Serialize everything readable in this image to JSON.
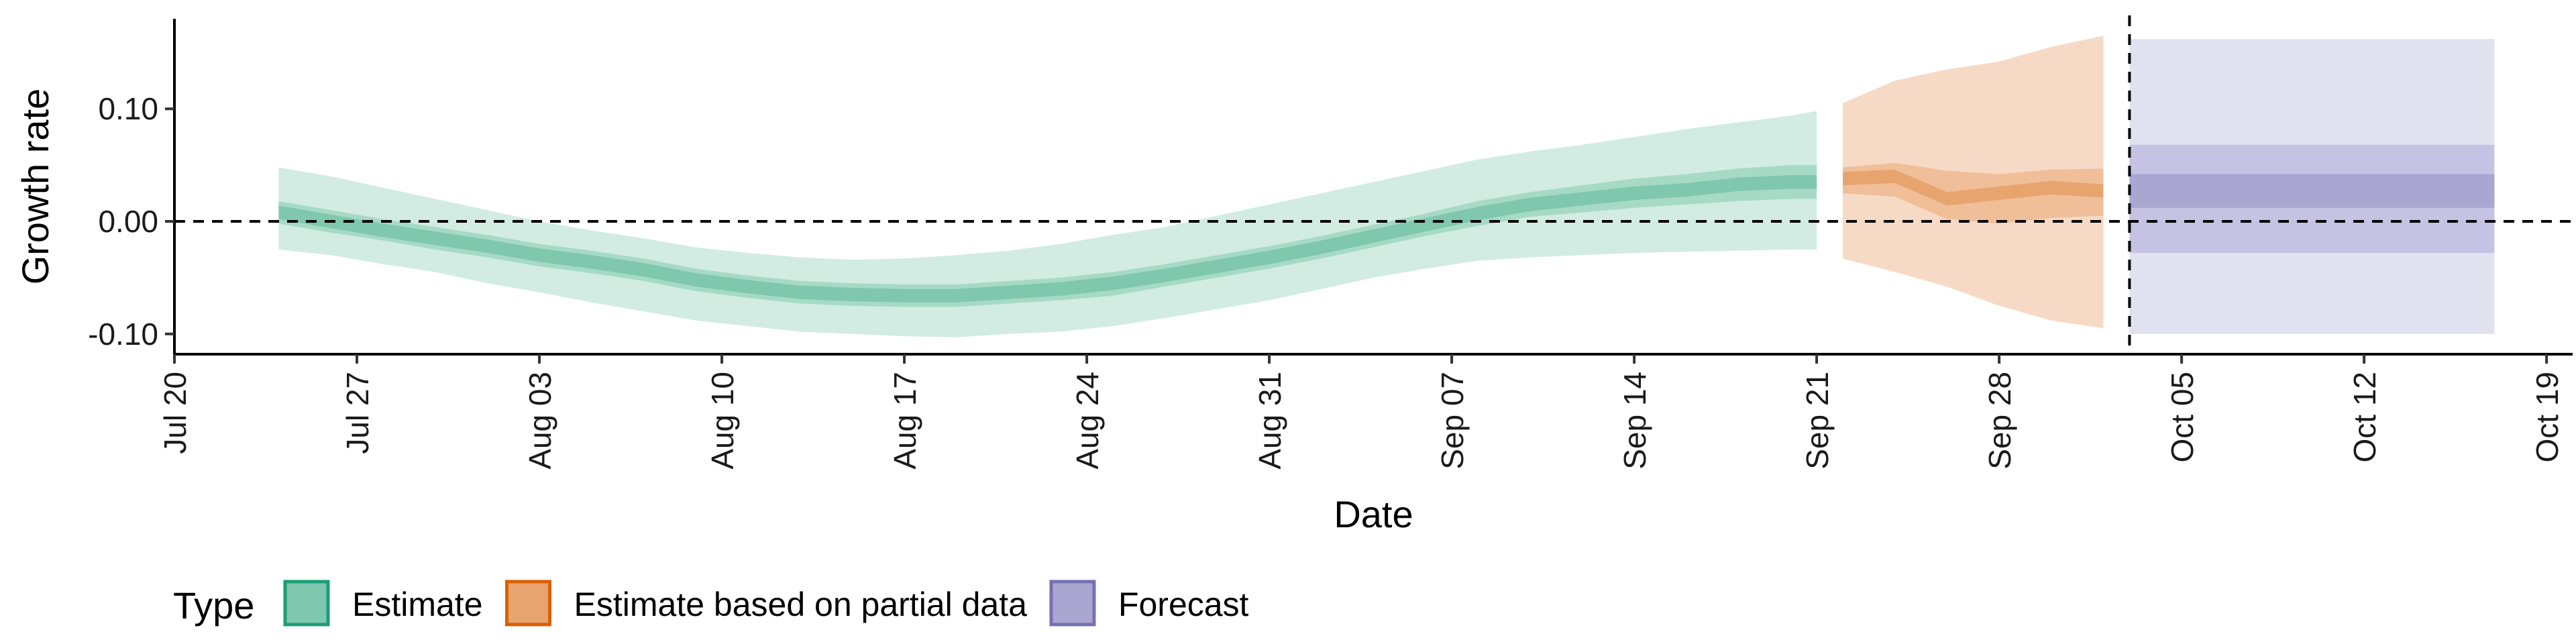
{
  "chart_data": {
    "type": "area",
    "xlabel": "Date",
    "ylabel": "Growth rate",
    "x_axis": {
      "type": "date",
      "range": [
        "2020-07-20",
        "2020-10-20"
      ],
      "ticks": [
        "2020-07-20",
        "2020-07-27",
        "2020-08-03",
        "2020-08-10",
        "2020-08-17",
        "2020-08-24",
        "2020-08-31",
        "2020-09-07",
        "2020-09-14",
        "2020-09-21",
        "2020-09-28",
        "2020-10-05",
        "2020-10-12",
        "2020-10-19"
      ],
      "tick_labels": [
        "Jul 20",
        "Jul 27",
        "Aug 03",
        "Aug 10",
        "Aug 17",
        "Aug 24",
        "Aug 31",
        "Sep 07",
        "Sep 14",
        "Sep 21",
        "Sep 28",
        "Oct 05",
        "Oct 12",
        "Oct 19"
      ]
    },
    "y_axis": {
      "range": [
        -0.118,
        0.18
      ],
      "ticks": [
        0.1,
        0.0,
        -0.1
      ],
      "tick_labels": [
        "0.10",
        "0.00",
        "-0.10"
      ]
    },
    "reference_lines": [
      {
        "orientation": "horizontal",
        "y": 0.0,
        "style": "dashed"
      },
      {
        "orientation": "vertical",
        "x": "2020-10-03",
        "style": "dashed"
      }
    ],
    "grid": false,
    "legend": {
      "title": "Type",
      "position": "bottom-left",
      "items": [
        {
          "label": "Estimate",
          "fill": "#7fc7af",
          "stroke": "#1b9e77"
        },
        {
          "label": "Estimate based on partial data",
          "fill": "#e8a46f",
          "stroke": "#d95f02"
        },
        {
          "label": "Forecast",
          "fill": "#aaa6d2",
          "stroke": "#7570b3"
        }
      ]
    },
    "series": [
      {
        "name": "Estimate",
        "color": "#1b9e77",
        "x": [
          "2020-07-24",
          "2020-07-26",
          "2020-07-28",
          "2020-07-30",
          "2020-08-01",
          "2020-08-03",
          "2020-08-05",
          "2020-08-07",
          "2020-08-09",
          "2020-08-11",
          "2020-08-13",
          "2020-08-15",
          "2020-08-17",
          "2020-08-19",
          "2020-08-21",
          "2020-08-23",
          "2020-08-25",
          "2020-08-27",
          "2020-08-29",
          "2020-08-31",
          "2020-09-02",
          "2020-09-04",
          "2020-09-06",
          "2020-09-08",
          "2020-09-10",
          "2020-09-12",
          "2020-09-14",
          "2020-09-16",
          "2020-09-18",
          "2020-09-20",
          "2020-09-21"
        ],
        "median": [
          0.008,
          0.0,
          -0.008,
          -0.015,
          -0.022,
          -0.03,
          -0.036,
          -0.043,
          -0.052,
          -0.058,
          -0.063,
          -0.065,
          -0.066,
          -0.066,
          -0.063,
          -0.06,
          -0.055,
          -0.048,
          -0.04,
          -0.032,
          -0.023,
          -0.013,
          -0.003,
          0.007,
          0.015,
          0.02,
          0.025,
          0.028,
          0.033,
          0.035,
          0.035
        ],
        "ci50_lower": [
          -0.002,
          -0.01,
          -0.017,
          -0.025,
          -0.032,
          -0.04,
          -0.046,
          -0.053,
          -0.062,
          -0.068,
          -0.073,
          -0.075,
          -0.076,
          -0.076,
          -0.073,
          -0.07,
          -0.066,
          -0.058,
          -0.05,
          -0.042,
          -0.033,
          -0.023,
          -0.013,
          -0.004,
          0.004,
          0.008,
          0.012,
          0.015,
          0.018,
          0.02,
          0.02
        ],
        "ci50_upper": [
          0.018,
          0.01,
          0.002,
          -0.005,
          -0.012,
          -0.02,
          -0.026,
          -0.033,
          -0.042,
          -0.048,
          -0.053,
          -0.055,
          -0.056,
          -0.056,
          -0.053,
          -0.05,
          -0.045,
          -0.038,
          -0.03,
          -0.022,
          -0.013,
          -0.003,
          0.007,
          0.018,
          0.026,
          0.032,
          0.038,
          0.042,
          0.047,
          0.05,
          0.05
        ],
        "ci90_lower": [
          -0.025,
          -0.03,
          -0.038,
          -0.045,
          -0.055,
          -0.063,
          -0.072,
          -0.08,
          -0.088,
          -0.093,
          -0.098,
          -0.1,
          -0.102,
          -0.103,
          -0.1,
          -0.098,
          -0.093,
          -0.086,
          -0.078,
          -0.07,
          -0.06,
          -0.05,
          -0.042,
          -0.035,
          -0.032,
          -0.03,
          -0.028,
          -0.027,
          -0.026,
          -0.025,
          -0.025
        ],
        "ci90_upper": [
          0.048,
          0.04,
          0.03,
          0.02,
          0.01,
          0.0,
          -0.008,
          -0.015,
          -0.023,
          -0.028,
          -0.032,
          -0.034,
          -0.033,
          -0.03,
          -0.026,
          -0.02,
          -0.012,
          -0.005,
          0.005,
          0.015,
          0.025,
          0.035,
          0.045,
          0.055,
          0.062,
          0.068,
          0.075,
          0.082,
          0.088,
          0.094,
          0.098
        ]
      },
      {
        "name": "Estimate based on partial data",
        "color": "#d95f02",
        "x": [
          "2020-09-22",
          "2020-09-24",
          "2020-09-26",
          "2020-09-28",
          "2020-09-30",
          "2020-10-02"
        ],
        "median": [
          0.038,
          0.04,
          0.02,
          0.025,
          0.03,
          0.027
        ],
        "ci50_lower": [
          0.025,
          0.022,
          0.002,
          -0.002,
          0.003,
          0.005
        ],
        "ci50_upper": [
          0.048,
          0.052,
          0.045,
          0.042,
          0.046,
          0.047
        ],
        "ci90_lower": [
          -0.033,
          -0.045,
          -0.058,
          -0.075,
          -0.088,
          -0.095
        ],
        "ci90_upper": [
          0.105,
          0.125,
          0.135,
          0.142,
          0.155,
          0.165
        ]
      },
      {
        "name": "Forecast",
        "color": "#7570b3",
        "x": [
          "2020-10-03",
          "2020-10-17"
        ],
        "median": [
          0.022,
          0.022
        ],
        "ci50_lower": [
          0.012,
          0.012
        ],
        "ci50_upper": [
          0.042,
          0.042
        ],
        "ci90_lower": [
          -0.028,
          -0.028
        ],
        "ci90_upper": [
          0.068,
          0.068
        ],
        "outer_lower": [
          -0.1,
          -0.1
        ],
        "outer_upper": [
          0.162,
          0.162
        ]
      }
    ]
  }
}
